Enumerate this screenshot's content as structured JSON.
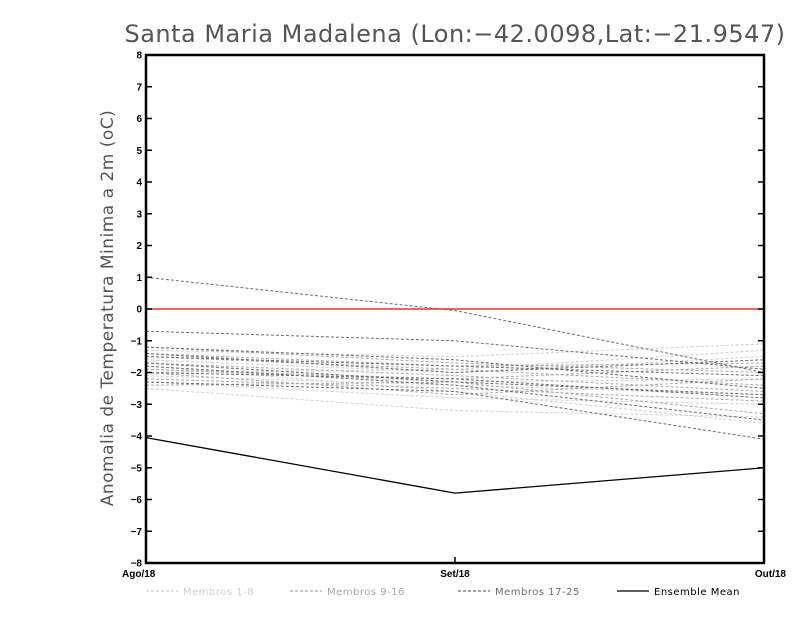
{
  "chart_data": {
    "type": "line",
    "title": "Santa Maria Madalena (Lon:−42.0098,Lat:−21.9547)",
    "ylabel": "Anomalia de Temperatura Minima a 2m (oC)",
    "xlabel": "",
    "categories": [
      "Ago/18",
      "Set/18",
      "Out/18"
    ],
    "ylim": [
      -8,
      8
    ],
    "yticks": [
      "−8",
      "−7",
      "−6",
      "−5",
      "−4",
      "−3",
      "−2",
      "−1",
      "0",
      "1",
      "2",
      "3",
      "4",
      "5",
      "6",
      "7",
      "8"
    ],
    "reference_line": {
      "y": 0,
      "color": "#e8332a"
    },
    "groups": [
      {
        "name": "Membros 1-8",
        "color": "#cfcfcf",
        "series": [
          [
            -1.3,
            -1.5,
            -1.1
          ],
          [
            -1.6,
            -2.0,
            -1.5
          ],
          [
            -1.9,
            -2.3,
            -2.2
          ],
          [
            -2.1,
            -2.4,
            -2.7
          ],
          [
            -2.3,
            -2.8,
            -3.0
          ],
          [
            -2.5,
            -3.2,
            -3.4
          ],
          [
            -1.8,
            -2.6,
            -3.6
          ],
          [
            -2.0,
            -1.9,
            -1.3
          ]
        ]
      },
      {
        "name": "Membros 9-16",
        "color": "#a9a9a9",
        "series": [
          [
            -1.2,
            -1.7,
            -2.0
          ],
          [
            -1.5,
            -1.9,
            -2.4
          ],
          [
            -1.7,
            -2.1,
            -2.6
          ],
          [
            -1.9,
            -2.2,
            -1.8
          ],
          [
            -2.2,
            -2.5,
            -2.9
          ],
          [
            -2.4,
            -2.3,
            -3.3
          ],
          [
            -1.4,
            -1.8,
            -1.7
          ],
          [
            -2.0,
            -2.7,
            -2.2
          ]
        ]
      },
      {
        "name": "Membros 17-25",
        "color": "#6e6e6e",
        "series": [
          [
            1.0,
            -0.05,
            -2.0
          ],
          [
            -0.7,
            -1.0,
            -1.9
          ],
          [
            -1.2,
            -1.6,
            -2.5
          ],
          [
            -1.5,
            -1.8,
            -2.1
          ],
          [
            -1.8,
            -2.4,
            -3.5
          ],
          [
            -2.0,
            -2.2,
            -2.8
          ],
          [
            -2.3,
            -2.6,
            -4.1
          ],
          [
            -1.4,
            -2.0,
            -1.6
          ],
          [
            -1.7,
            -2.3,
            -2.7
          ]
        ]
      }
    ],
    "ensemble_mean": {
      "name": "Ensemble Mean",
      "color": "#000000",
      "values": [
        -4.05,
        -5.8,
        -5.0
      ]
    },
    "legend": [
      {
        "label": "Membros 1-8",
        "color": "#cfcfcf",
        "dashed": true
      },
      {
        "label": "Membros 9-16",
        "color": "#a9a9a9",
        "dashed": true
      },
      {
        "label": "Membros 17-25",
        "color": "#6e6e6e",
        "dashed": true
      },
      {
        "label": "Ensemble Mean",
        "color": "#000000",
        "dashed": false
      }
    ]
  }
}
